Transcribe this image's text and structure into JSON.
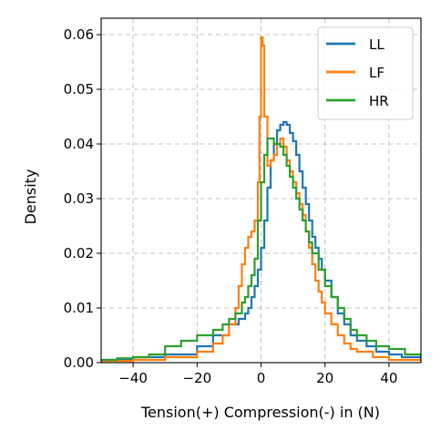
{
  "chart_data": {
    "type": "histogram-step",
    "xlabel": "Tension(+) Compression(-) in (N)",
    "ylabel": "Density",
    "xlim": [
      -50,
      50
    ],
    "ylim": [
      0,
      0.063
    ],
    "x_ticks": [
      -40,
      -20,
      0,
      20,
      40
    ],
    "x_tick_labels": [
      "−40",
      "−20",
      "0",
      "20",
      "40"
    ],
    "y_ticks": [
      0,
      0.01,
      0.02,
      0.03,
      0.04,
      0.05,
      0.06
    ],
    "y_tick_labels": [
      "0.00",
      "0.01",
      "0.02",
      "0.03",
      "0.04",
      "0.05",
      "0.06"
    ],
    "grid": true,
    "legend_position": "top-right",
    "series": [
      {
        "name": "LL",
        "color": "#1f77b4",
        "points": [
          [
            -50,
            0.0005
          ],
          [
            -40,
            0.001
          ],
          [
            -30,
            0.0015
          ],
          [
            -20,
            0.003
          ],
          [
            -15,
            0.005
          ],
          [
            -10,
            0.007
          ],
          [
            -7,
            0.008
          ],
          [
            -5,
            0.009
          ],
          [
            -4,
            0.01
          ],
          [
            -3,
            0.012
          ],
          [
            -2,
            0.014
          ],
          [
            -1,
            0.017
          ],
          [
            0,
            0.021
          ],
          [
            1,
            0.026
          ],
          [
            2,
            0.032
          ],
          [
            3,
            0.037
          ],
          [
            4,
            0.04
          ],
          [
            5,
            0.0425
          ],
          [
            6,
            0.0435
          ],
          [
            7,
            0.044
          ],
          [
            8,
            0.0435
          ],
          [
            9,
            0.042
          ],
          [
            10,
            0.0405
          ],
          [
            11,
            0.038
          ],
          [
            12,
            0.035
          ],
          [
            13,
            0.032
          ],
          [
            14,
            0.029
          ],
          [
            15,
            0.026
          ],
          [
            16,
            0.023
          ],
          [
            17,
            0.021
          ],
          [
            18,
            0.019
          ],
          [
            19,
            0.017
          ],
          [
            20,
            0.015
          ],
          [
            22,
            0.012
          ],
          [
            24,
            0.009
          ],
          [
            26,
            0.007
          ],
          [
            28,
            0.005
          ],
          [
            30,
            0.004
          ],
          [
            33,
            0.003
          ],
          [
            36,
            0.002
          ],
          [
            40,
            0.0015
          ],
          [
            44,
            0.001
          ],
          [
            50,
            0.0005
          ]
        ]
      },
      {
        "name": "LF",
        "color": "#ff7f0e",
        "points": [
          [
            -50,
            0.0003
          ],
          [
            -40,
            0.0005
          ],
          [
            -30,
            0.001
          ],
          [
            -20,
            0.002
          ],
          [
            -15,
            0.0035
          ],
          [
            -12,
            0.005
          ],
          [
            -10,
            0.007
          ],
          [
            -8,
            0.01
          ],
          [
            -7,
            0.014
          ],
          [
            -6,
            0.018
          ],
          [
            -5,
            0.021
          ],
          [
            -4,
            0.023
          ],
          [
            -3,
            0.024
          ],
          [
            -2,
            0.026
          ],
          [
            -1,
            0.033
          ],
          [
            -0.5,
            0.045
          ],
          [
            0,
            0.0595
          ],
          [
            0.5,
            0.058
          ],
          [
            1,
            0.045
          ],
          [
            2,
            0.036
          ],
          [
            3,
            0.037
          ],
          [
            4,
            0.038
          ],
          [
            5,
            0.04
          ],
          [
            6,
            0.041
          ],
          [
            7,
            0.0395
          ],
          [
            8,
            0.037
          ],
          [
            9,
            0.035
          ],
          [
            10,
            0.033
          ],
          [
            11,
            0.031
          ],
          [
            12,
            0.029
          ],
          [
            13,
            0.027
          ],
          [
            14,
            0.024
          ],
          [
            15,
            0.021
          ],
          [
            16,
            0.018
          ],
          [
            17,
            0.015
          ],
          [
            18,
            0.013
          ],
          [
            19,
            0.011
          ],
          [
            20,
            0.009
          ],
          [
            22,
            0.007
          ],
          [
            24,
            0.005
          ],
          [
            26,
            0.0035
          ],
          [
            28,
            0.0025
          ],
          [
            30,
            0.002
          ],
          [
            35,
            0.001
          ],
          [
            40,
            0.0005
          ],
          [
            50,
            0.0002
          ]
        ]
      },
      {
        "name": "HR",
        "color": "#2ca02c",
        "points": [
          [
            -50,
            0.0005
          ],
          [
            -45,
            0.0008
          ],
          [
            -40,
            0.001
          ],
          [
            -35,
            0.0015
          ],
          [
            -30,
            0.003
          ],
          [
            -25,
            0.004
          ],
          [
            -20,
            0.005
          ],
          [
            -15,
            0.006
          ],
          [
            -12,
            0.007
          ],
          [
            -10,
            0.008
          ],
          [
            -8,
            0.009
          ],
          [
            -6,
            0.011
          ],
          [
            -5,
            0.012
          ],
          [
            -4,
            0.014
          ],
          [
            -3,
            0.016
          ],
          [
            -2,
            0.019
          ],
          [
            -1,
            0.026
          ],
          [
            0,
            0.033
          ],
          [
            1,
            0.038
          ],
          [
            2,
            0.041
          ],
          [
            3,
            0.041
          ],
          [
            4,
            0.04
          ],
          [
            5,
            0.04
          ],
          [
            6,
            0.0395
          ],
          [
            7,
            0.038
          ],
          [
            8,
            0.036
          ],
          [
            9,
            0.034
          ],
          [
            10,
            0.032
          ],
          [
            11,
            0.03
          ],
          [
            12,
            0.028
          ],
          [
            13,
            0.026
          ],
          [
            14,
            0.024
          ],
          [
            15,
            0.022
          ],
          [
            16,
            0.02
          ],
          [
            18,
            0.017
          ],
          [
            20,
            0.014
          ],
          [
            22,
            0.012
          ],
          [
            24,
            0.01
          ],
          [
            26,
            0.008
          ],
          [
            28,
            0.006
          ],
          [
            30,
            0.005
          ],
          [
            33,
            0.004
          ],
          [
            36,
            0.003
          ],
          [
            40,
            0.0025
          ],
          [
            45,
            0.0015
          ],
          [
            50,
            0.001
          ]
        ]
      }
    ]
  }
}
